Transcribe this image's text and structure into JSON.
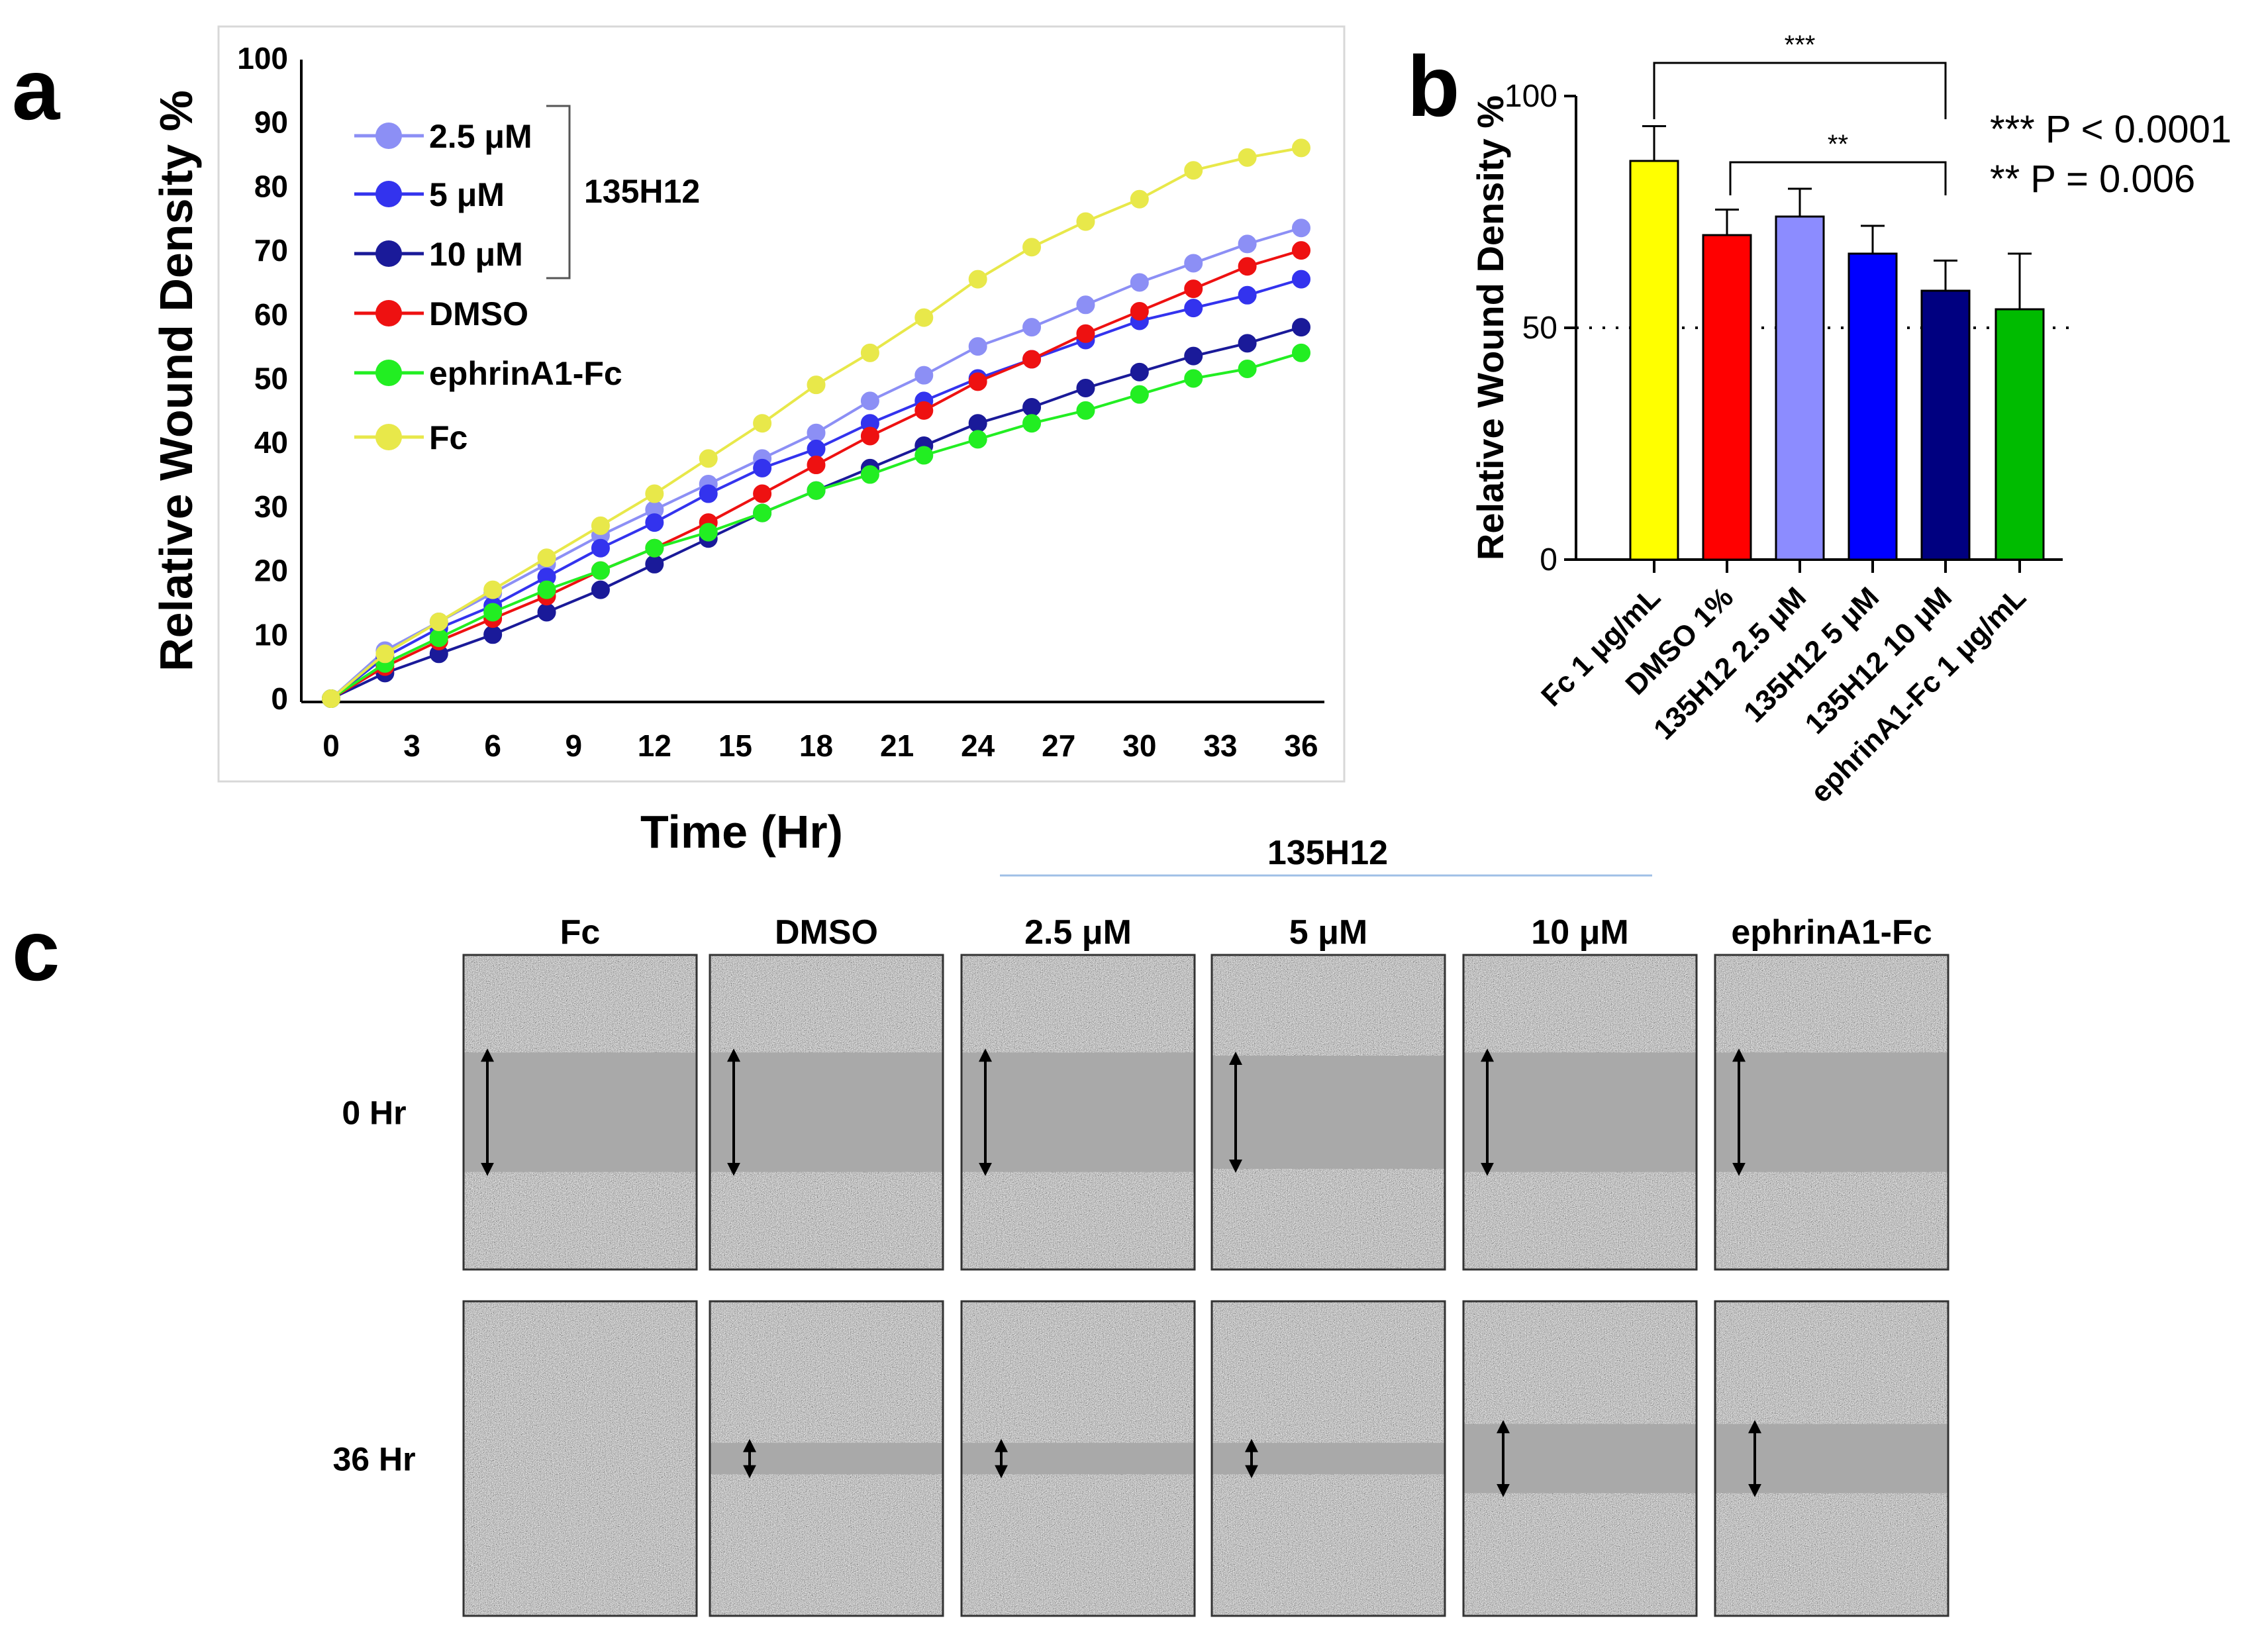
{
  "panels": {
    "a": "a",
    "b": "b",
    "c": "c"
  },
  "chart_data": [
    {
      "type": "line",
      "panel": "a",
      "xlabel": "Time (Hr)",
      "ylabel": "Relative Wound Density %",
      "xlim": [
        0,
        36
      ],
      "ylim": [
        0,
        100
      ],
      "xticks": [
        0,
        3,
        6,
        9,
        12,
        15,
        18,
        21,
        24,
        27,
        30,
        33,
        36
      ],
      "yticks": [
        0,
        10,
        20,
        30,
        40,
        50,
        60,
        70,
        80,
        90,
        100
      ],
      "legend_group_label": "135H12",
      "x": [
        0,
        2,
        4,
        6,
        8,
        10,
        12,
        14,
        16,
        18,
        20,
        22,
        24,
        26,
        28,
        30,
        32,
        34,
        36
      ],
      "series": [
        {
          "name": "2.5 μM",
          "color": "#8c8ff5",
          "values": [
            0,
            7.5,
            12,
            16.5,
            21,
            25.5,
            29.5,
            33.5,
            37.5,
            41.5,
            46.5,
            50.5,
            55,
            58,
            61.5,
            65,
            68,
            71,
            73.5
          ]
        },
        {
          "name": "5 μM",
          "color": "#3333ee",
          "values": [
            0,
            6.5,
            11,
            14.5,
            19,
            23.5,
            27.5,
            32,
            36,
            39,
            43,
            46.5,
            50,
            53,
            56,
            59,
            61,
            63,
            65.5
          ]
        },
        {
          "name": "10 μM",
          "color": "#1a1a99",
          "values": [
            0,
            4,
            7,
            10,
            13.5,
            17,
            21,
            25,
            29,
            32.5,
            36,
            39.5,
            43,
            45.5,
            48.5,
            51,
            53.5,
            55.5,
            58
          ]
        },
        {
          "name": "DMSO",
          "color": "#ee1111",
          "values": [
            0,
            5,
            9,
            12.5,
            16,
            20,
            23.5,
            27.5,
            32,
            36.5,
            41,
            45,
            49.5,
            53,
            57,
            60.5,
            64,
            67.5,
            70
          ]
        },
        {
          "name": "ephrinA1-Fc",
          "color": "#22ee22",
          "values": [
            0,
            5.5,
            9.5,
            13.5,
            17,
            20,
            23.5,
            26,
            29,
            32.5,
            35,
            38,
            40.5,
            43,
            45,
            47.5,
            50,
            51.5,
            54
          ]
        },
        {
          "name": "Fc",
          "color": "#e8e84a",
          "values": [
            0,
            7,
            12,
            17,
            22,
            27,
            32,
            37.5,
            43,
            49,
            54,
            59.5,
            65.5,
            70.5,
            74.5,
            78,
            82.5,
            84.5,
            86
          ]
        }
      ]
    },
    {
      "type": "bar",
      "panel": "b",
      "ylabel": "Relative Wound Density %",
      "ylim": [
        0,
        100
      ],
      "yticks": [
        0,
        50,
        100
      ],
      "reference_line": 50,
      "categories": [
        "Fc 1 μg/mL",
        "DMSO 1%",
        "135H12 2.5 μM",
        "135H12 5 μM",
        "135H12 10 μM",
        "ephrinA1-Fc 1 μg/mL"
      ],
      "colors": [
        "#ffff00",
        "#ff0000",
        "#8c8cff",
        "#0000ff",
        "#000080",
        "#00bb00"
      ],
      "values": [
        86,
        70,
        74,
        66,
        58,
        54
      ],
      "errors": [
        7.5,
        5.5,
        6,
        6,
        6.5,
        12
      ],
      "significance": [
        {
          "from": 0,
          "to": 4,
          "label": "***"
        },
        {
          "from": 1,
          "to": 4,
          "label": "**"
        }
      ],
      "p_values": [
        "*** P < 0.0001",
        "** P = 0.006"
      ]
    }
  ],
  "panel_c": {
    "group_label": "135H12",
    "columns": [
      "Fc",
      "DMSO",
      "2.5 μM",
      "5 μM",
      "10 μM",
      "ephrinA1-Fc"
    ],
    "rows": [
      "0 Hr",
      "36 Hr"
    ],
    "wound_gap_fraction": [
      [
        0.38,
        0.38,
        0.38,
        0.36,
        0.38,
        0.38
      ],
      [
        0.0,
        0.1,
        0.1,
        0.1,
        0.22,
        0.22
      ]
    ]
  }
}
